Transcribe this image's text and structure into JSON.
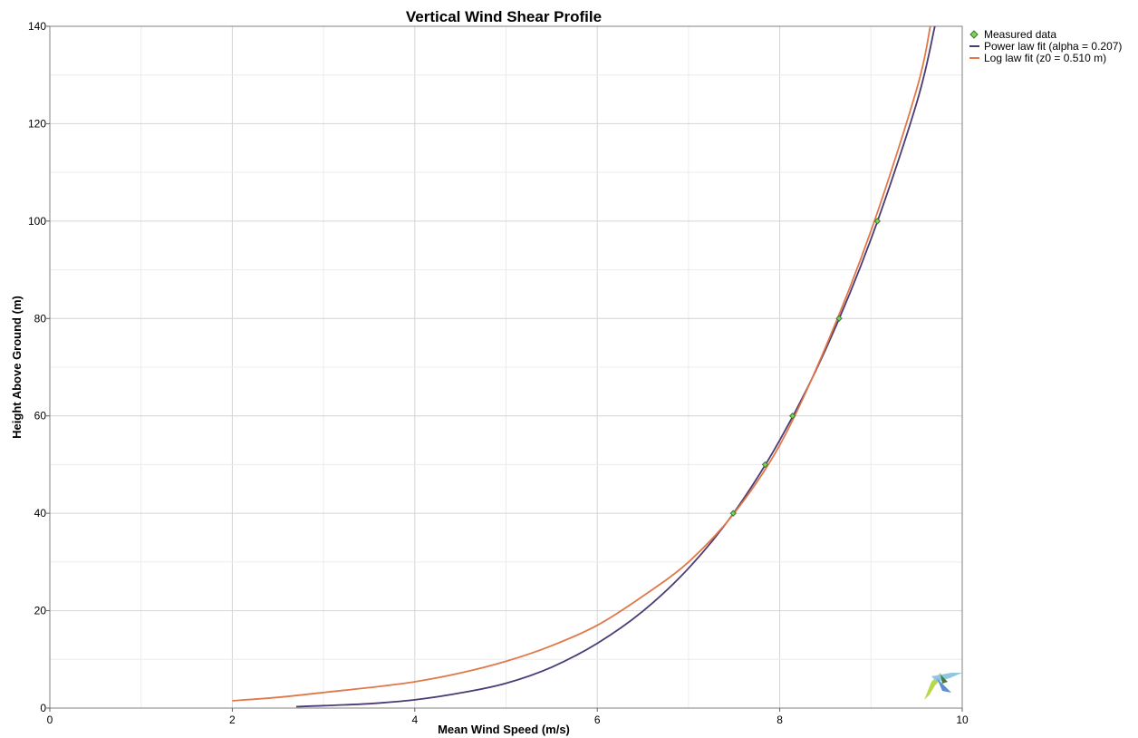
{
  "chart_data": {
    "type": "line",
    "title": "Vertical Wind Shear Profile",
    "xlabel": "Mean Wind Speed (m/s)",
    "ylabel": "Height Above Ground (m)",
    "xlim": [
      0,
      10
    ],
    "ylim": [
      0,
      140
    ],
    "xticks": [
      0,
      2,
      4,
      6,
      8,
      10
    ],
    "yticks": [
      0,
      20,
      40,
      60,
      80,
      100,
      120,
      140
    ],
    "grid": true,
    "legend_position": "top-right, outside plot",
    "series": [
      {
        "name": "Measured data",
        "kind": "scatter",
        "marker": "diamond",
        "color": "#3a7a3a",
        "fill": "#7fd34e",
        "x": [
          7.49,
          7.84,
          8.14,
          8.65,
          9.07
        ],
        "y": [
          40,
          50,
          60,
          80,
          100
        ]
      },
      {
        "name": "Power law fit (alpha = 0.207)",
        "kind": "line",
        "color": "#4b3a74",
        "x": [
          2.7,
          3.0,
          3.5,
          4.0,
          4.5,
          5.0,
          5.5,
          6.0,
          6.5,
          7.0,
          7.5,
          8.0,
          8.5,
          9.0,
          9.5,
          9.7
        ],
        "y": [
          0.3,
          0.5,
          0.9,
          1.7,
          3.1,
          5.1,
          8.4,
          13.3,
          19.9,
          28.7,
          40.2,
          55.0,
          73.5,
          96.3,
          124.2,
          140
        ]
      },
      {
        "name": "Log law fit (z0 = 0.510 m)",
        "kind": "line",
        "color": "#e0784a",
        "x": [
          2.0,
          2.5,
          3.0,
          3.5,
          4.0,
          4.5,
          5.0,
          5.5,
          6.0,
          6.5,
          7.0,
          7.5,
          8.0,
          8.5,
          9.0,
          9.5,
          9.65
        ],
        "y": [
          1.5,
          2.2,
          3.2,
          4.2,
          5.4,
          7.2,
          9.6,
          12.8,
          17.0,
          23.0,
          30.0,
          40.0,
          54.0,
          74.0,
          98.0,
          127.0,
          140.0
        ]
      }
    ]
  }
}
